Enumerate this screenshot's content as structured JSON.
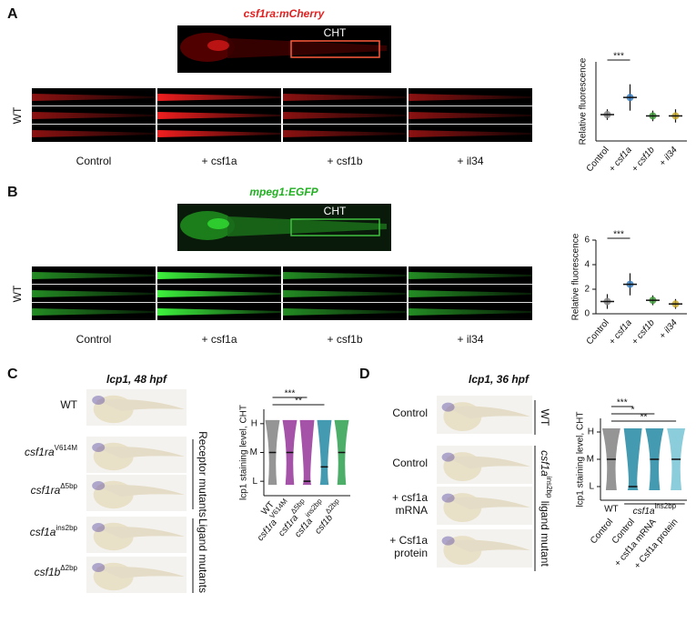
{
  "panels": [
    {
      "letter": "A",
      "title": "csf1ra:mCherry",
      "region": "CHT",
      "row_label": "WT",
      "conditions": [
        "Control",
        "+ csf1a",
        "+ csf1b",
        "+ il34"
      ]
    },
    {
      "letter": "B",
      "title": "mpeg1:EGFP",
      "region": "CHT",
      "row_label": "WT",
      "conditions": [
        "Control",
        "+ csf1a",
        "+ csf1b",
        "+ il34"
      ]
    },
    {
      "letter": "C",
      "title": "lcp1, 48 hpf",
      "rows": [
        "WT",
        {
          "gene": "csf1ra",
          "allele": "V614M"
        },
        {
          "gene": "csf1ra",
          "allele": "Δ5bp"
        },
        {
          "gene": "csf1a",
          "allele": "ins2bp"
        },
        {
          "gene": "csf1b",
          "allele": "Δ2bp"
        }
      ],
      "brackets": [
        "Receptor mutants",
        "Ligand mutants"
      ]
    },
    {
      "letter": "D",
      "title": "lcp1, 36 hpf",
      "rows": [
        [
          "Control"
        ],
        [
          "Control"
        ],
        [
          "+ csf1a",
          "mRNA"
        ],
        [
          "+ Csf1a",
          "protein"
        ]
      ],
      "brackets": [
        "WT",
        {
          "gene": "csf1a",
          "allele": "ins2bp",
          "rest": " ligand mutant"
        }
      ]
    }
  ],
  "chart_data": [
    {
      "type": "dot",
      "ylabel": "Relative fluorescence",
      "categories": [
        "Control",
        "+ csf1a",
        "+ csf1b",
        "+ il34"
      ],
      "values": [
        1.0,
        1.65,
        0.95,
        0.95
      ],
      "errors": [
        0.2,
        0.5,
        0.2,
        0.25
      ],
      "colors": [
        "#8a8a8a",
        "#3a7fc1",
        "#3f9a3a",
        "#c8a92a"
      ],
      "ylim": [
        0,
        3
      ],
      "annotations": [
        {
          "text": "***",
          "between": [
            "Control",
            "+ csf1a"
          ]
        }
      ]
    },
    {
      "type": "dot",
      "ylabel": "Relative fluorescence",
      "categories": [
        "Control",
        "+ csf1a",
        "+ csf1b",
        "+ il34"
      ],
      "values": [
        1.0,
        2.4,
        1.1,
        0.8
      ],
      "errors": [
        0.6,
        0.9,
        0.4,
        0.4
      ],
      "colors": [
        "#8a8a8a",
        "#3a7fc1",
        "#3f9a3a",
        "#c8a92a"
      ],
      "ylim": [
        0,
        6
      ],
      "yticks": [
        0,
        2,
        4,
        6
      ],
      "annotations": [
        {
          "text": "***",
          "between": [
            "Control",
            "+ csf1a"
          ]
        }
      ]
    },
    {
      "type": "violin",
      "ylabel": "lcp1 staining level, CHT",
      "categories": [
        "WT",
        {
          "gene": "csf1ra",
          "allele": "V614M"
        },
        {
          "gene": "csf1ra",
          "allele": "Δ5bp"
        },
        {
          "gene": "csf1a",
          "allele": "ins2bp"
        },
        {
          "gene": "csf1b",
          "allele": "Δ2bp"
        }
      ],
      "values": [
        2,
        2,
        1,
        1.5,
        2
      ],
      "colors": [
        "#8a8a8a",
        "#9b3fa0",
        "#9b3fa0",
        "#2f8fa8",
        "#3aa55a"
      ],
      "ylim": [
        0.5,
        3.5
      ],
      "yticks": [
        {
          "value": 1,
          "label": "L"
        },
        {
          "value": 2,
          "label": "M"
        },
        {
          "value": 3,
          "label": "H"
        }
      ],
      "annotations": [
        {
          "text": "***",
          "between": [
            0,
            2
          ]
        },
        {
          "text": "**",
          "between": [
            0,
            3
          ]
        }
      ]
    },
    {
      "type": "violin",
      "ylabel": "lcp1 staining level, CHT",
      "categories": [
        "Control",
        "Control",
        "+ csf1a mRNA",
        "+ Csf1a protein"
      ],
      "groups": [
        "WT",
        {
          "gene": "csf1a",
          "allele": "ins2bp"
        }
      ],
      "values": [
        2,
        1,
        2,
        2
      ],
      "colors": [
        "#8a8a8a",
        "#2f8fa8",
        "#2f8fa8",
        "#7fc8d8"
      ],
      "ylim": [
        0.5,
        3.5
      ],
      "yticks": [
        {
          "value": 1,
          "label": "L"
        },
        {
          "value": 2,
          "label": "M"
        },
        {
          "value": 3,
          "label": "H"
        }
      ],
      "annotations": [
        {
          "text": "***",
          "between": [
            0,
            1
          ]
        },
        {
          "text": "*",
          "between": [
            0,
            2
          ]
        },
        {
          "text": "**",
          "between": [
            0,
            3
          ]
        }
      ]
    }
  ]
}
